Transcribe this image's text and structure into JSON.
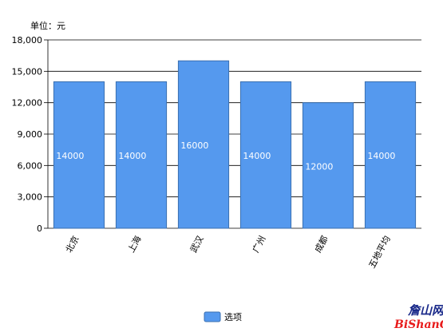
{
  "chart_data": {
    "type": "bar",
    "unit_label": "单位：元",
    "categories": [
      "北京",
      "上海",
      "武汉",
      "广州",
      "成都",
      "五地平均"
    ],
    "series": [
      {
        "name": "选项",
        "values": [
          14000,
          14000,
          16000,
          14000,
          12000,
          14000
        ]
      }
    ],
    "data_labels": [
      "14000",
      "14000",
      "16000",
      "14000",
      "12000",
      "14000"
    ],
    "yticks": [
      "0",
      "3,000",
      "6,000",
      "9,000",
      "12,000",
      "15,000",
      "18,000"
    ],
    "ylim": [
      0,
      18000
    ],
    "grid": true,
    "legend_position": "bottom-center",
    "colors": {
      "bar": "#5599ee",
      "bar_stroke": "#3a6fb0",
      "grid": "#000000",
      "label": "#ffffff"
    }
  },
  "watermark": {
    "line1": "詹山网",
    "line2": "BiShanCai"
  }
}
